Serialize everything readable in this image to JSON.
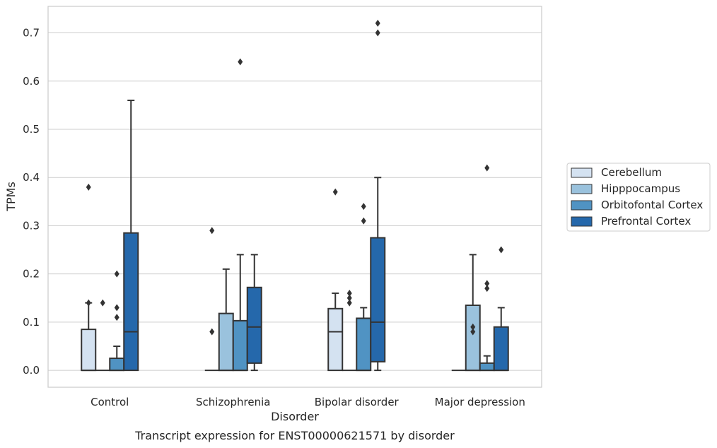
{
  "chart_data": {
    "type": "box",
    "title": "",
    "caption": "Transcript expression for ENST00000621571 by disorder",
    "xlabel": "Disorder",
    "ylabel": "TPMs",
    "ylim": [
      -0.035,
      0.755
    ],
    "yticks": [
      "0.0",
      "0.1",
      "0.2",
      "0.3",
      "0.4",
      "0.5",
      "0.6",
      "0.7"
    ],
    "grid": true,
    "legend_position": "right",
    "categories": [
      "Control",
      "Schizophrenia",
      "Bipolar disorder",
      "Major depression"
    ],
    "series": [
      {
        "name": "Cerebellum",
        "color": "#d4e2f1",
        "boxes": [
          {
            "whisker_low": 0.0,
            "q1": 0.0,
            "median": 0.0,
            "q3": 0.085,
            "whisker_high": 0.14,
            "outliers": [
              0.38,
              0.14
            ]
          },
          {
            "whisker_low": 0.0,
            "q1": 0.0,
            "median": 0.0,
            "q3": 0.0,
            "whisker_high": 0.0,
            "outliers": [
              0.29,
              0.08
            ]
          },
          {
            "whisker_low": 0.0,
            "q1": 0.0,
            "median": 0.08,
            "q3": 0.128,
            "whisker_high": 0.16,
            "outliers": [
              0.37
            ]
          },
          {
            "whisker_low": 0.0,
            "q1": 0.0,
            "median": 0.0,
            "q3": 0.0,
            "whisker_high": 0.0,
            "outliers": []
          }
        ]
      },
      {
        "name": "Hipppocampus",
        "color": "#9ac2dd",
        "boxes": [
          {
            "whisker_low": 0.0,
            "q1": 0.0,
            "median": 0.0,
            "q3": 0.0,
            "whisker_high": 0.0,
            "outliers": [
              0.14
            ]
          },
          {
            "whisker_low": 0.0,
            "q1": 0.0,
            "median": 0.0,
            "q3": 0.118,
            "whisker_high": 0.21,
            "outliers": []
          },
          {
            "whisker_low": 0.0,
            "q1": 0.0,
            "median": 0.0,
            "q3": 0.0,
            "whisker_high": 0.0,
            "outliers": [
              0.16,
              0.15,
              0.14
            ]
          },
          {
            "whisker_low": 0.0,
            "q1": 0.0,
            "median": 0.0,
            "q3": 0.135,
            "whisker_high": 0.24,
            "outliers": [
              0.09,
              0.08
            ]
          }
        ]
      },
      {
        "name": "Orbitofontal Cortex",
        "color": "#5093c3",
        "boxes": [
          {
            "whisker_low": 0.0,
            "q1": 0.0,
            "median": 0.0,
            "q3": 0.025,
            "whisker_high": 0.05,
            "outliers": [
              0.2,
              0.13,
              0.11
            ]
          },
          {
            "whisker_low": 0.0,
            "q1": 0.0,
            "median": 0.0,
            "q3": 0.103,
            "whisker_high": 0.24,
            "outliers": [
              0.64
            ]
          },
          {
            "whisker_low": 0.0,
            "q1": 0.0,
            "median": 0.0,
            "q3": 0.108,
            "whisker_high": 0.13,
            "outliers": [
              0.34,
              0.31
            ]
          },
          {
            "whisker_low": 0.0,
            "q1": 0.0,
            "median": 0.0,
            "q3": 0.015,
            "whisker_high": 0.03,
            "outliers": [
              0.42,
              0.18,
              0.17
            ]
          }
        ]
      },
      {
        "name": "Prefrontal Cortex",
        "color": "#2568ab",
        "boxes": [
          {
            "whisker_low": 0.0,
            "q1": 0.0,
            "median": 0.08,
            "q3": 0.285,
            "whisker_high": 0.56,
            "outliers": []
          },
          {
            "whisker_low": 0.0,
            "q1": 0.015,
            "median": 0.09,
            "q3": 0.172,
            "whisker_high": 0.24,
            "outliers": []
          },
          {
            "whisker_low": 0.0,
            "q1": 0.018,
            "median": 0.1,
            "q3": 0.275,
            "whisker_high": 0.4,
            "outliers": [
              0.72,
              0.7
            ]
          },
          {
            "whisker_low": 0.0,
            "q1": 0.0,
            "median": 0.0,
            "q3": 0.09,
            "whisker_high": 0.13,
            "outliers": [
              0.25
            ]
          }
        ]
      }
    ]
  }
}
